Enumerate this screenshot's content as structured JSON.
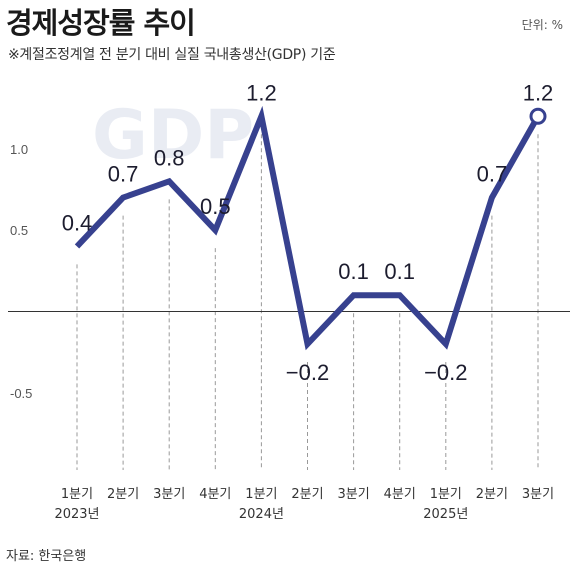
{
  "header": {
    "title": "경제성장률 추이",
    "unit": "단위: %",
    "note": "※계절조정계열 전 분기 대비 실질 국내총생산(GDP) 기준"
  },
  "watermark": "GDP",
  "source": "자료: 한국은행",
  "colors": {
    "line": "#37418f",
    "axis": "#333333",
    "grid": "#999999",
    "watermark": "#e9ecf3"
  },
  "chart_data": {
    "type": "line",
    "categories": [
      "1분기",
      "2분기",
      "3분기",
      "4분기",
      "1분기",
      "2분기",
      "3분기",
      "4분기",
      "1분기",
      "2분기",
      "3분기"
    ],
    "years": [
      {
        "label": "2023년",
        "category_index": 0
      },
      {
        "label": "2024년",
        "category_index": 4
      },
      {
        "label": "2025년",
        "category_index": 8
      }
    ],
    "series": [
      {
        "values": [
          0.4,
          0.7,
          0.8,
          0.5,
          1.2,
          -0.2,
          0.1,
          0.1,
          -0.2,
          0.7,
          1.2
        ],
        "labels": [
          "0.4",
          "0.7",
          "0.8",
          "0.5",
          "1.2",
          "−0.2",
          "0.1",
          "0.1",
          "−0.2",
          "0.7",
          "1.2"
        ]
      }
    ],
    "yticks": [
      {
        "value": 1.0,
        "label": "1.0"
      },
      {
        "value": 0.5,
        "label": "0.5"
      },
      {
        "value": -0.5,
        "label": "-0.5"
      }
    ],
    "ylim": [
      -0.95,
      1.3
    ],
    "highlight_last_point": true,
    "grid": "vertical dashed drop lines"
  }
}
